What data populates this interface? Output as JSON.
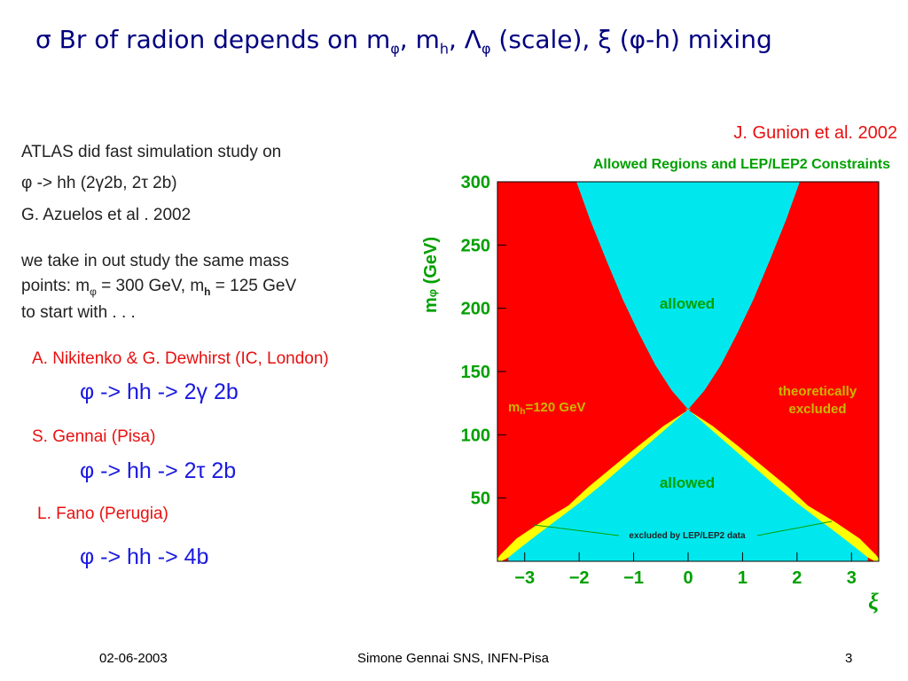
{
  "slide": {
    "title": {
      "lead": "σ Br of radion depends on m",
      "sub1": "φ",
      "mid1": ", m",
      "sub2": "h",
      "mid2": ", Λ",
      "sub3": "φ",
      "tail": " (scale), ξ (φ-h) mixing"
    },
    "intro": {
      "line1": "ATLAS did fast simulation study on",
      "line2": "φ -> hh (2γ2b, 2τ 2b)",
      "line3": "G. Azuelos et al . 2002",
      "line4": "we take in out study the same mass",
      "line5_a": "points: m",
      "line5_sub": "φ",
      "line5_b": " = 300 GeV, m",
      "line5_h": "h",
      "line5_c": " = 125 GeV",
      "line6": "to start with . . ."
    },
    "groups": [
      {
        "authors": "A. Nikitenko & G. Dewhirst (IC, London)",
        "channel": "φ -> hh -> 2γ 2b"
      },
      {
        "authors": "S.  Gennai (Pisa)",
        "channel": "φ -> hh -> 2τ 2b"
      },
      {
        "authors": "L. Fano (Perugia)",
        "channel": "φ -> hh -> 4b"
      }
    ],
    "footer": {
      "date": "02-06-2003",
      "author": "Simone Gennai SNS, INFN-Pisa",
      "page": "3"
    }
  },
  "chart_data": {
    "type": "area",
    "credit": "J. Gunion et al. 2002",
    "title": "Allowed Regions and LEP/LEP2 Constraints",
    "ylabel": "m",
    "ylabel_sub": "φ",
    "ylabel_unit": " (GeV)",
    "xlabel": "ξ",
    "xlim": [
      -3.5,
      3.5
    ],
    "ylim": [
      0,
      300
    ],
    "xticks": [
      -3,
      -2,
      -1,
      0,
      1,
      2,
      3
    ],
    "xtick_labels": [
      "−3",
      "−2",
      "−1",
      "0",
      "1",
      "2",
      "3"
    ],
    "yticks": [
      50,
      100,
      150,
      200,
      250,
      300
    ],
    "ytick_labels": [
      "50",
      "100",
      "150",
      "200",
      "250",
      "300"
    ],
    "annotations": {
      "allowed_upper": "allowed",
      "allowed_lower": "allowed",
      "mh_a": "m",
      "mh_sub": "h",
      "mh_b": "=120 GeV",
      "excluded_1": "theoretically",
      "excluded_2": "excluded",
      "lep": "excluded by LEP/LEP2 data"
    },
    "mh": 120,
    "colors": {
      "excluded": "#ff0000",
      "allowed": "#00e8ee",
      "lep": "#ffff00",
      "title": "#00a000",
      "credit": "#e81010"
    },
    "upper_boundary": [
      {
        "xi": 0,
        "m": 120
      },
      {
        "xi": 0.3,
        "m": 135
      },
      {
        "xi": 0.6,
        "m": 155
      },
      {
        "xi": 0.9,
        "m": 180
      },
      {
        "xi": 1.2,
        "m": 207
      },
      {
        "xi": 1.5,
        "m": 238
      },
      {
        "xi": 1.8,
        "m": 270
      },
      {
        "xi": 2.05,
        "m": 300
      }
    ],
    "lower_boundary": [
      {
        "xi": 0,
        "m": 120
      },
      {
        "xi": 0.4,
        "m": 105
      },
      {
        "xi": 0.8,
        "m": 90
      },
      {
        "xi": 1.2,
        "m": 75
      },
      {
        "xi": 1.6,
        "m": 60
      },
      {
        "xi": 2.0,
        "m": 46
      },
      {
        "xi": 2.4,
        "m": 33
      },
      {
        "xi": 2.8,
        "m": 20
      },
      {
        "xi": 3.1,
        "m": 10
      },
      {
        "xi": 3.3,
        "m": 3
      }
    ],
    "lep_band": [
      {
        "xi": 0.2,
        "m": 117,
        "w": 0.25
      },
      {
        "xi": 0.6,
        "m": 100,
        "w": 0.35
      },
      {
        "xi": 1.0,
        "m": 84,
        "w": 0.4
      },
      {
        "xi": 1.4,
        "m": 68,
        "w": 0.45
      },
      {
        "xi": 1.8,
        "m": 54,
        "w": 0.4
      },
      {
        "xi": 2.2,
        "m": 41,
        "w": 0.5
      },
      {
        "xi": 2.6,
        "m": 28,
        "w": 0.55
      },
      {
        "xi": 3.0,
        "m": 15,
        "w": 0.45
      },
      {
        "xi": 3.3,
        "m": 6,
        "w": 0.3
      }
    ]
  }
}
